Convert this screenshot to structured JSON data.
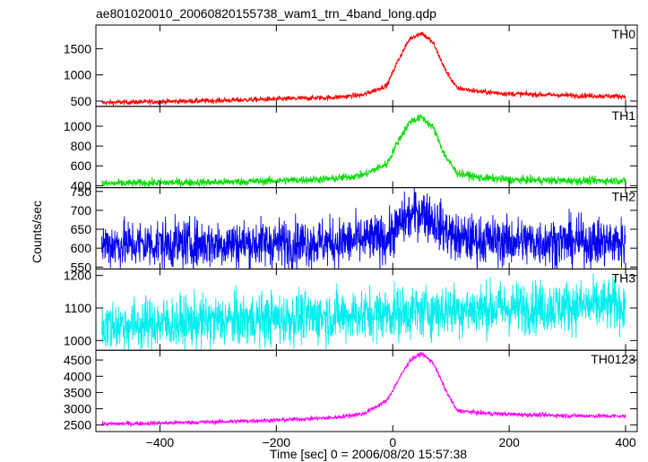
{
  "title": "ae801020010_20060820155738_wam1_trn_4band_long.qdp",
  "chart_data": {
    "type": "line",
    "title": "ae801020010_20060820155738_wam1_trn_4band_long.qdp",
    "xlabel": "Time [sec] 0 = 2006/08/20 15:57:38",
    "ylabel": "Counts/sec",
    "xlim": [
      -510,
      420
    ],
    "xticks": [
      -400,
      -200,
      0,
      200,
      400
    ],
    "xtick_labels": [
      "−400",
      "−200",
      "0",
      "200",
      "400"
    ],
    "grid": false,
    "panels": [
      {
        "name": "TH0",
        "color": "#ff0000",
        "ylim": [
          400,
          1950
        ],
        "yticks": [
          500,
          1000,
          1500
        ],
        "ytick_labels": [
          "500",
          "1000",
          "1500"
        ],
        "x": [
          -500,
          -400,
          -300,
          -200,
          -100,
          -50,
          -10,
          10,
          30,
          50,
          70,
          90,
          110,
          150,
          200,
          300,
          400
        ],
        "values": [
          470,
          490,
          510,
          540,
          570,
          620,
          800,
          1300,
          1700,
          1800,
          1600,
          1100,
          750,
          680,
          640,
          610,
          590
        ],
        "noise": 25
      },
      {
        "name": "TH1",
        "color": "#00dd00",
        "ylim": [
          380,
          1200
        ],
        "yticks": [
          400,
          600,
          800,
          1000
        ],
        "ytick_labels": [
          "400",
          "600",
          "800",
          "1000"
        ],
        "x": [
          -500,
          -400,
          -300,
          -200,
          -100,
          -50,
          -10,
          10,
          30,
          50,
          70,
          90,
          110,
          150,
          200,
          300,
          400
        ],
        "values": [
          420,
          430,
          435,
          450,
          470,
          510,
          620,
          860,
          1050,
          1090,
          980,
          700,
          530,
          480,
          460,
          450,
          450
        ],
        "noise": 20
      },
      {
        "name": "TH2",
        "color": "#0000ee",
        "ylim": [
          545,
          760
        ],
        "yticks": [
          550,
          600,
          650,
          700,
          750
        ],
        "ytick_labels": [
          "550",
          "600",
          "650",
          "700",
          "750"
        ],
        "x": [
          -500,
          -300,
          -100,
          -10,
          20,
          50,
          80,
          110,
          200,
          400
        ],
        "values": [
          610,
          612,
          615,
          625,
          675,
          700,
          660,
          625,
          618,
          615
        ],
        "noise": 32
      },
      {
        "name": "TH3",
        "color": "#00eeee",
        "ylim": [
          970,
          1220
        ],
        "yticks": [
          1000,
          1100,
          1200
        ],
        "ytick_labels": [
          "1000",
          "1100",
          "1200"
        ],
        "x": [
          -500,
          -300,
          -100,
          0,
          100,
          200,
          400
        ],
        "values": [
          1045,
          1060,
          1075,
          1085,
          1095,
          1100,
          1110
        ],
        "noise": 40
      },
      {
        "name": "TH0123",
        "color": "#ff00ff",
        "ylim": [
          2300,
          4800
        ],
        "yticks": [
          2500,
          3000,
          3500,
          4000,
          4500
        ],
        "ytick_labels": [
          "2500",
          "3000",
          "3500",
          "4000",
          "4500"
        ],
        "x": [
          -500,
          -400,
          -300,
          -200,
          -100,
          -50,
          -10,
          10,
          30,
          50,
          70,
          90,
          110,
          150,
          200,
          300,
          400
        ],
        "values": [
          2530,
          2560,
          2600,
          2650,
          2730,
          2850,
          3250,
          3900,
          4500,
          4700,
          4400,
          3600,
          2950,
          2870,
          2830,
          2790,
          2770
        ],
        "noise": 35
      }
    ]
  }
}
